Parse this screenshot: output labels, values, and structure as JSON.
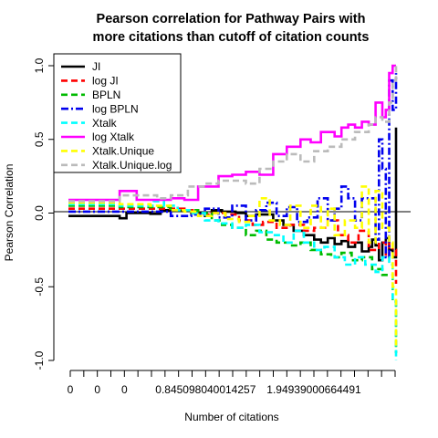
{
  "chart_data": {
    "type": "line",
    "title_lines": [
      "Pearson correlation for Pathway Pairs with",
      "more citations than cutoff of citation counts"
    ],
    "xlabel": "Number of citations",
    "ylabel": "Pearson Correlation",
    "x_tick_labels": [
      "0",
      "0",
      "0",
      "0.845098040014257",
      "1.94939000664491"
    ],
    "x_tick_count": 25,
    "ylim": [
      -1.0,
      1.0
    ],
    "y_ticks": [
      "-1.0",
      "-0.5",
      "0.0",
      "0.5",
      "1.0"
    ],
    "y_tick_values": [
      -1.0,
      -0.5,
      0.0,
      0.5,
      1.0
    ],
    "reference_line_y": 0.0,
    "legend_position": "top-left",
    "series": [
      {
        "name": "JI",
        "color": "#000000",
        "dash": "solid",
        "points": [
          [
            0,
            -0.02
          ],
          [
            5,
            -0.02
          ],
          [
            10,
            -0.02
          ],
          [
            14.5,
            -0.02
          ],
          [
            15,
            -0.035
          ],
          [
            16.5,
            -0.035
          ],
          [
            17,
            0.0
          ],
          [
            20,
            0.0
          ],
          [
            24,
            -0.005
          ],
          [
            27,
            0.02
          ],
          [
            33,
            0.02
          ],
          [
            36,
            0.0
          ],
          [
            40,
            -0.02
          ],
          [
            42,
            0.02
          ],
          [
            45,
            0.01
          ],
          [
            49,
            0.0
          ],
          [
            52,
            -0.02
          ],
          [
            55,
            -0.01
          ],
          [
            60,
            -0.05
          ],
          [
            63,
            -0.08
          ],
          [
            66,
            -0.12
          ],
          [
            69,
            -0.15
          ],
          [
            72,
            -0.18
          ],
          [
            74,
            -0.2
          ],
          [
            76,
            -0.17
          ],
          [
            78,
            -0.21
          ],
          [
            80,
            -0.19
          ],
          [
            82,
            -0.23
          ],
          [
            84,
            -0.2
          ],
          [
            86,
            -0.26
          ],
          [
            88,
            -0.23
          ],
          [
            89,
            -0.18
          ],
          [
            90,
            -0.22
          ],
          [
            91,
            -0.32
          ],
          [
            92,
            -0.2
          ],
          [
            93,
            -0.17
          ],
          [
            94,
            -0.25
          ],
          [
            95,
            -0.3
          ],
          [
            96,
            0.58
          ]
        ]
      },
      {
        "name": "log JI",
        "color": "#ff0000",
        "dash": "dashed",
        "points": [
          [
            0,
            0.03
          ],
          [
            10,
            0.03
          ],
          [
            14.5,
            0.03
          ],
          [
            15,
            0.03
          ],
          [
            20,
            0.03
          ],
          [
            26,
            0.03
          ],
          [
            30,
            0.03
          ],
          [
            34,
            0.02
          ],
          [
            38,
            -0.01
          ],
          [
            42,
            0.0
          ],
          [
            46,
            -0.01
          ],
          [
            50,
            -0.05
          ],
          [
            54,
            -0.08
          ],
          [
            57,
            -0.06
          ],
          [
            61,
            -0.1
          ],
          [
            65,
            -0.08
          ],
          [
            69,
            -0.12
          ],
          [
            72,
            -0.1
          ],
          [
            76,
            -0.05
          ],
          [
            79,
            -0.15
          ],
          [
            82,
            -0.2
          ],
          [
            85,
            -0.12
          ],
          [
            88,
            -0.25
          ],
          [
            91,
            -0.2
          ],
          [
            93,
            -0.3
          ],
          [
            94,
            -0.2
          ],
          [
            95,
            -0.25
          ],
          [
            96,
            -0.48
          ]
        ]
      },
      {
        "name": "BPLN",
        "color": "#00bb00",
        "dash": "dashed",
        "points": [
          [
            0,
            0.05
          ],
          [
            10,
            0.05
          ],
          [
            14.5,
            0.05
          ],
          [
            15,
            0.04
          ],
          [
            20,
            0.04
          ],
          [
            26,
            0.04
          ],
          [
            30,
            0.02
          ],
          [
            33,
            0.02
          ],
          [
            38,
            0.0
          ],
          [
            42,
            -0.05
          ],
          [
            45,
            -0.08
          ],
          [
            48,
            -0.1
          ],
          [
            52,
            -0.15
          ],
          [
            55,
            -0.12
          ],
          [
            58,
            -0.18
          ],
          [
            61,
            -0.2
          ],
          [
            65,
            -0.22
          ],
          [
            68,
            -0.2
          ],
          [
            71,
            -0.25
          ],
          [
            74,
            -0.28
          ],
          [
            77,
            -0.3
          ],
          [
            80,
            -0.27
          ],
          [
            83,
            -0.32
          ],
          [
            86,
            -0.3
          ],
          [
            89,
            -0.38
          ],
          [
            92,
            -0.42
          ],
          [
            95,
            -0.6
          ],
          [
            96,
            -0.95
          ]
        ]
      },
      {
        "name": "log BPLN",
        "color": "#0000ee",
        "dash": "dashdot",
        "points": [
          [
            0,
            0.01
          ],
          [
            10,
            0.01
          ],
          [
            20,
            0.01
          ],
          [
            26,
            0.01
          ],
          [
            30,
            -0.02
          ],
          [
            36,
            -0.01
          ],
          [
            40,
            0.03
          ],
          [
            44,
            -0.03
          ],
          [
            48,
            0.05
          ],
          [
            52,
            -0.05
          ],
          [
            55,
            0.02
          ],
          [
            58,
            0.07
          ],
          [
            61,
            -0.02
          ],
          [
            64,
            0.04
          ],
          [
            67,
            -0.06
          ],
          [
            70,
            -0.03
          ],
          [
            73,
            0.1
          ],
          [
            76,
            -0.05
          ],
          [
            78,
            0.03
          ],
          [
            80,
            0.18
          ],
          [
            82,
            0.1
          ],
          [
            84,
            -0.05
          ],
          [
            86,
            0.1
          ],
          [
            88,
            0.1
          ],
          [
            90,
            -0.18
          ],
          [
            91,
            0.5
          ],
          [
            92,
            0.3
          ],
          [
            93,
            -0.3
          ],
          [
            94,
            0.9
          ],
          [
            95,
            0.7
          ],
          [
            96,
            0.95
          ]
        ]
      },
      {
        "name": "Xtalk",
        "color": "#00ffff",
        "dash": "dashed",
        "points": [
          [
            0,
            0.06
          ],
          [
            10,
            0.06
          ],
          [
            14.5,
            0.06
          ],
          [
            15,
            0.05
          ],
          [
            20,
            0.05
          ],
          [
            25,
            0.08
          ],
          [
            28,
            0.05
          ],
          [
            32,
            0.02
          ],
          [
            36,
            0.0
          ],
          [
            40,
            -0.05
          ],
          [
            44,
            -0.07
          ],
          [
            48,
            -0.1
          ],
          [
            52,
            -0.08
          ],
          [
            56,
            -0.13
          ],
          [
            60,
            -0.15
          ],
          [
            63,
            -0.2
          ],
          [
            66,
            -0.12
          ],
          [
            69,
            -0.2
          ],
          [
            72,
            -0.25
          ],
          [
            75,
            -0.23
          ],
          [
            78,
            -0.3
          ],
          [
            81,
            -0.35
          ],
          [
            84,
            -0.3
          ],
          [
            87,
            -0.35
          ],
          [
            90,
            -0.4
          ],
          [
            92,
            -0.3
          ],
          [
            94,
            -0.35
          ],
          [
            95,
            -0.6
          ],
          [
            96,
            -1.0
          ]
        ]
      },
      {
        "name": "log Xtalk",
        "color": "#ff00ff",
        "dash": "solid",
        "points": [
          [
            0,
            0.09
          ],
          [
            10,
            0.09
          ],
          [
            14.5,
            0.09
          ],
          [
            15,
            0.15
          ],
          [
            18,
            0.15
          ],
          [
            20,
            0.09
          ],
          [
            26,
            0.09
          ],
          [
            30,
            0.1
          ],
          [
            34,
            0.09
          ],
          [
            38,
            0.18
          ],
          [
            43,
            0.18
          ],
          [
            44,
            0.25
          ],
          [
            48,
            0.26
          ],
          [
            52,
            0.28
          ],
          [
            56,
            0.26
          ],
          [
            60,
            0.4
          ],
          [
            64,
            0.45
          ],
          [
            68,
            0.5
          ],
          [
            71,
            0.48
          ],
          [
            74,
            0.55
          ],
          [
            78,
            0.52
          ],
          [
            80,
            0.58
          ],
          [
            82,
            0.6
          ],
          [
            84,
            0.58
          ],
          [
            86,
            0.62
          ],
          [
            88,
            0.6
          ],
          [
            90,
            0.75
          ],
          [
            92,
            0.65
          ],
          [
            93,
            0.7
          ],
          [
            94,
            0.95
          ],
          [
            95,
            1.0
          ],
          [
            96,
            1.0
          ]
        ]
      },
      {
        "name": "Xtalk.Unique",
        "color": "#ffff00",
        "dash": "dashed",
        "points": [
          [
            0,
            0.07
          ],
          [
            10,
            0.07
          ],
          [
            14.5,
            0.07
          ],
          [
            15,
            0.06
          ],
          [
            20,
            0.06
          ],
          [
            24,
            0.05
          ],
          [
            30,
            0.02
          ],
          [
            34,
            0.01
          ],
          [
            38,
            -0.02
          ],
          [
            42,
            0.0
          ],
          [
            46,
            -0.04
          ],
          [
            50,
            -0.06
          ],
          [
            53,
            -0.02
          ],
          [
            56,
            0.1
          ],
          [
            59,
            -0.05
          ],
          [
            62,
            -0.08
          ],
          [
            65,
            0.05
          ],
          [
            68,
            -0.1
          ],
          [
            71,
            0.05
          ],
          [
            74,
            -0.1
          ],
          [
            76,
            0.03
          ],
          [
            78,
            -0.15
          ],
          [
            81,
            -0.05
          ],
          [
            84,
            -0.1
          ],
          [
            86,
            0.18
          ],
          [
            88,
            -0.2
          ],
          [
            90,
            0.15
          ],
          [
            92,
            -0.1
          ],
          [
            94,
            -0.2
          ],
          [
            95,
            -0.5
          ],
          [
            96,
            -0.9
          ]
        ]
      },
      {
        "name": "Xtalk.Unique.log",
        "color": "#bbbbbb",
        "dash": "dashed",
        "points": [
          [
            0,
            0.08
          ],
          [
            10,
            0.08
          ],
          [
            14.5,
            0.08
          ],
          [
            15,
            0.12
          ],
          [
            20,
            0.12
          ],
          [
            26,
            0.1
          ],
          [
            30,
            0.12
          ],
          [
            35,
            0.18
          ],
          [
            40,
            0.2
          ],
          [
            44,
            0.22
          ],
          [
            48,
            0.22
          ],
          [
            52,
            0.2
          ],
          [
            56,
            0.3
          ],
          [
            60,
            0.35
          ],
          [
            64,
            0.4
          ],
          [
            68,
            0.35
          ],
          [
            72,
            0.42
          ],
          [
            76,
            0.45
          ],
          [
            80,
            0.5
          ],
          [
            84,
            0.55
          ],
          [
            88,
            0.6
          ],
          [
            90,
            0.65
          ],
          [
            92,
            0.62
          ],
          [
            94,
            0.75
          ],
          [
            95,
            0.9
          ],
          [
            96,
            1.0
          ]
        ]
      }
    ]
  }
}
